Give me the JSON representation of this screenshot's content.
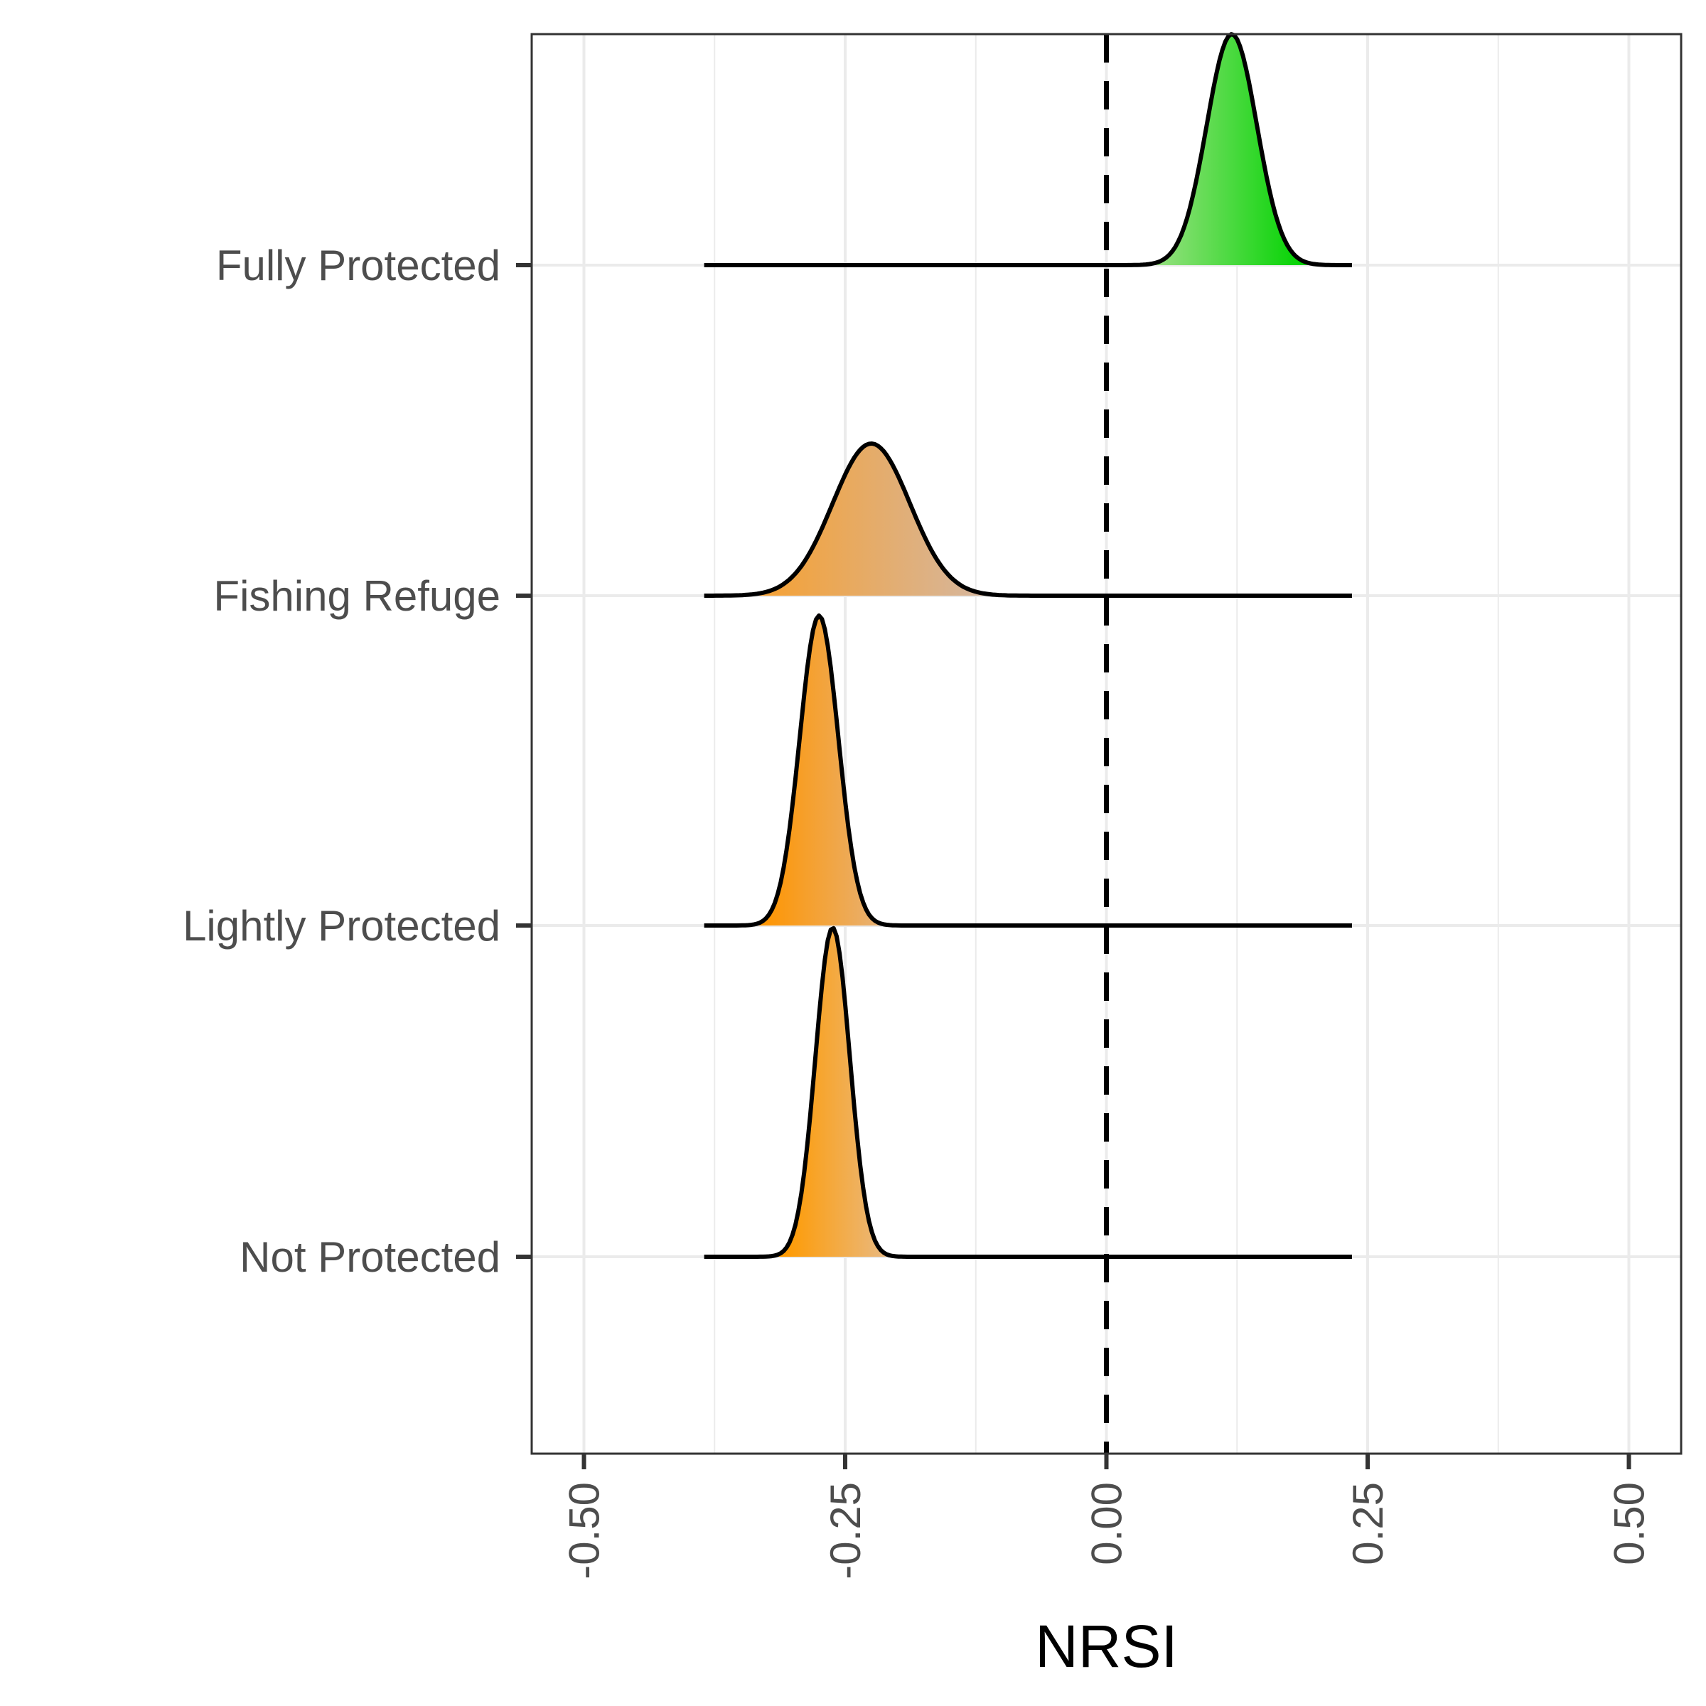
{
  "chart_data": {
    "type": "ridgeline",
    "xlabel": "NRSI",
    "ylabel": "",
    "xlim": [
      -0.55,
      0.55
    ],
    "x_ticks": [
      -0.5,
      -0.25,
      0,
      0.25,
      0.5
    ],
    "x_tick_labels": [
      "-0.50",
      "-0.25",
      "0.00",
      "0.25",
      "0.50"
    ],
    "grid": true,
    "reference_line": {
      "x": 0,
      "style": "dashed"
    },
    "density_range": [
      -0.385,
      0.235
    ],
    "categories": [
      "Not Protected",
      "Lightly Protected",
      "Fishing Refuge",
      "Fully Protected"
    ],
    "series": [
      {
        "name": "Not Protected",
        "center": -0.262,
        "sd": 0.0165,
        "fill_colors": [
          "#ff9a00",
          "#e9b980"
        ],
        "fill_range": [
          -0.31,
          -0.21
        ]
      },
      {
        "name": "Lightly Protected",
        "center": -0.275,
        "sd": 0.0185,
        "fill_colors": [
          "#ff9500",
          "#e8b070"
        ],
        "fill_range": [
          -0.33,
          -0.22
        ]
      },
      {
        "name": "Fishing Refuge",
        "center": -0.225,
        "sd": 0.037,
        "fill_colors": [
          "#f3a23a",
          "#d6b69c"
        ],
        "fill_range": [
          -0.32,
          -0.12
        ]
      },
      {
        "name": "Fully Protected",
        "center": 0.12,
        "sd": 0.024,
        "fill_colors": [
          "#94e07e",
          "#00d300"
        ],
        "fill_range": [
          0.05,
          0.19
        ]
      }
    ],
    "colors": {
      "grid": "#ebebeb",
      "panel_border": "#333333",
      "outline": "#000000"
    }
  }
}
